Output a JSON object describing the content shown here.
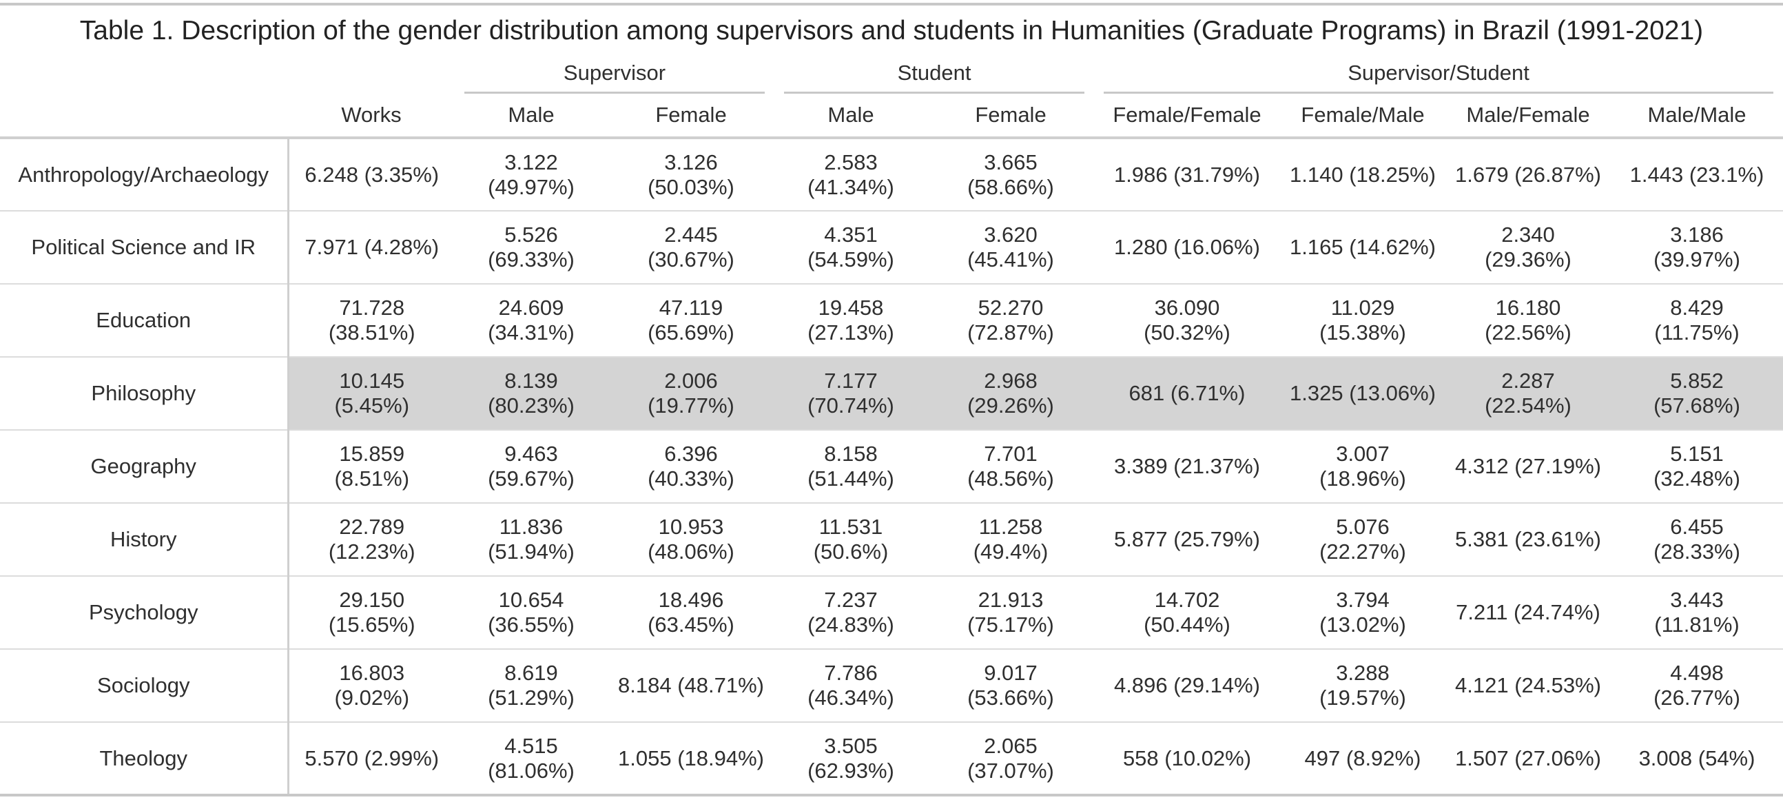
{
  "title": "Table 1. Description of the gender distribution among supervisors and students in Humanities (Graduate Programs) in Brazil (1991-2021)",
  "group_headers": {
    "supervisor": "Supervisor",
    "student": "Student",
    "supervisor_student": "Supervisor/Student"
  },
  "column_headers": [
    "Works",
    "Male",
    "Female",
    "Male",
    "Female",
    "Female/Female",
    "Female/Male",
    "Male/Female",
    "Male/Male"
  ],
  "rows": [
    {
      "label": "Anthropology/Archaeology",
      "cells": [
        "6.248 (3.35%)",
        "3.122\n(49.97%)",
        "3.126\n(50.03%)",
        "2.583\n(41.34%)",
        "3.665\n(58.66%)",
        "1.986 (31.79%)",
        "1.140 (18.25%)",
        "1.679 (26.87%)",
        "1.443 (23.1%)"
      ]
    },
    {
      "label": "Political Science and IR",
      "cells": [
        "7.971 (4.28%)",
        "5.526\n(69.33%)",
        "2.445\n(30.67%)",
        "4.351\n(54.59%)",
        "3.620\n(45.41%)",
        "1.280 (16.06%)",
        "1.165 (14.62%)",
        "2.340\n(29.36%)",
        "3.186\n(39.97%)"
      ]
    },
    {
      "label": "Education",
      "cells": [
        "71.728\n(38.51%)",
        "24.609\n(34.31%)",
        "47.119\n(65.69%)",
        "19.458\n(27.13%)",
        "52.270\n(72.87%)",
        "36.090\n(50.32%)",
        "11.029\n(15.38%)",
        "16.180\n(22.56%)",
        "8.429\n(11.75%)"
      ]
    },
    {
      "label": "Philosophy",
      "highlight": true,
      "cells": [
        "10.145\n(5.45%)",
        "8.139\n(80.23%)",
        "2.006\n(19.77%)",
        "7.177\n(70.74%)",
        "2.968\n(29.26%)",
        "681 (6.71%)",
        "1.325 (13.06%)",
        "2.287\n(22.54%)",
        "5.852\n(57.68%)"
      ]
    },
    {
      "label": "Geography",
      "cells": [
        "15.859\n(8.51%)",
        "9.463\n(59.67%)",
        "6.396\n(40.33%)",
        "8.158\n(51.44%)",
        "7.701\n(48.56%)",
        "3.389 (21.37%)",
        "3.007\n(18.96%)",
        "4.312 (27.19%)",
        "5.151\n(32.48%)"
      ]
    },
    {
      "label": "History",
      "cells": [
        "22.789\n(12.23%)",
        "11.836\n(51.94%)",
        "10.953\n(48.06%)",
        "11.531\n(50.6%)",
        "11.258\n(49.4%)",
        "5.877 (25.79%)",
        "5.076\n(22.27%)",
        "5.381 (23.61%)",
        "6.455\n(28.33%)"
      ]
    },
    {
      "label": "Psychology",
      "cells": [
        "29.150\n(15.65%)",
        "10.654\n(36.55%)",
        "18.496\n(63.45%)",
        "7.237\n(24.83%)",
        "21.913\n(75.17%)",
        "14.702\n(50.44%)",
        "3.794\n(13.02%)",
        "7.211 (24.74%)",
        "3.443\n(11.81%)"
      ]
    },
    {
      "label": "Sociology",
      "cells": [
        "16.803\n(9.02%)",
        "8.619\n(51.29%)",
        "8.184 (48.71%)",
        "7.786\n(46.34%)",
        "9.017\n(53.66%)",
        "4.896 (29.14%)",
        "3.288\n(19.57%)",
        "4.121 (24.53%)",
        "4.498\n(26.77%)"
      ]
    },
    {
      "label": "Theology",
      "cells": [
        "5.570 (2.99%)",
        "4.515\n(81.06%)",
        "1.055 (18.94%)",
        "3.505\n(62.93%)",
        "2.065\n(37.07%)",
        "558 (10.02%)",
        "497 (8.92%)",
        "1.507 (27.06%)",
        "3.008 (54%)"
      ]
    }
  ]
}
